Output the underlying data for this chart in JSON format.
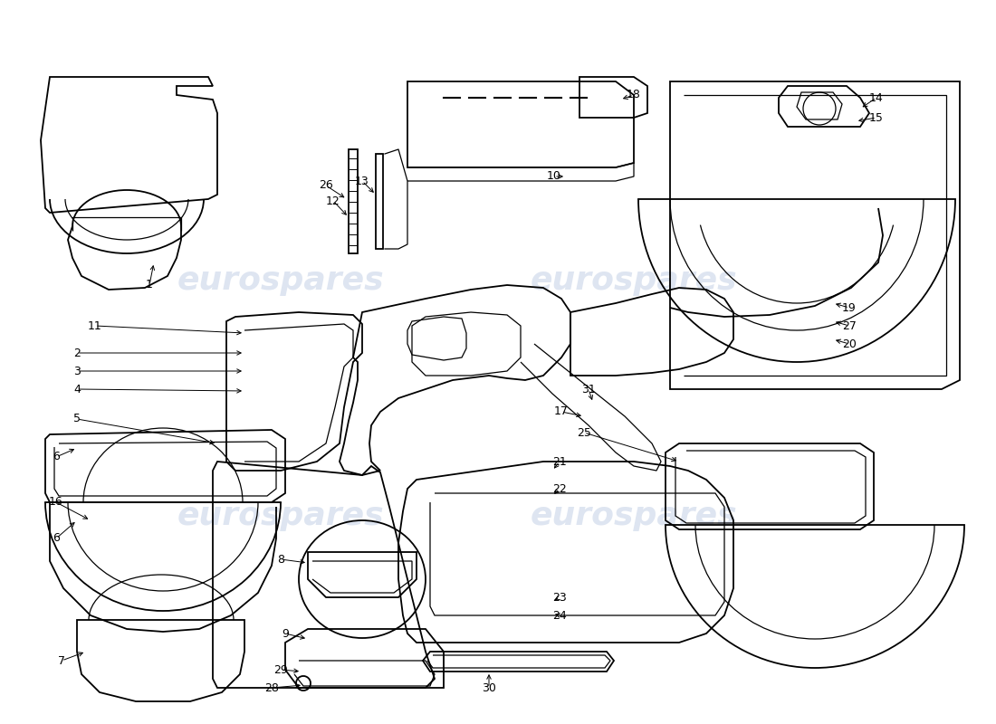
{
  "background_color": "#ffffff",
  "line_color": "#000000",
  "watermark_color": "#c8d4e8",
  "watermark_text": "eurospares",
  "fig_width": 11.0,
  "fig_height": 8.0,
  "dpi": 100
}
